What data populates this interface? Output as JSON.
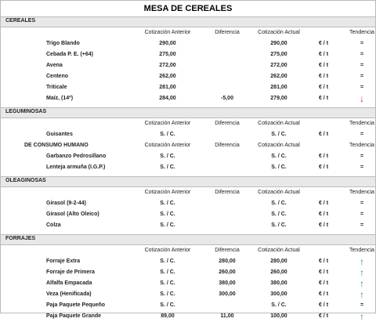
{
  "title": "MESA DE CEREALES",
  "sections": [
    {
      "name": "CEREALES",
      "groups": [
        {
          "columns": [
            "Cotización Anterior",
            "Diferencia",
            "Cotización Actual",
            "Tendencia"
          ],
          "rows": [
            [
              "Trigo Blando",
              "290,00",
              null,
              "290,00",
              "€ / t",
              "="
            ],
            [
              "Cebada P. E. (+64)",
              "275,00",
              null,
              "275,00",
              "€ / t",
              "="
            ],
            [
              "Avena",
              "272,00",
              null,
              "272,00",
              "€ / t",
              "="
            ],
            [
              "Centeno",
              "262,00",
              null,
              "262,00",
              "€ / t",
              "="
            ],
            [
              "Triticale",
              "281,00",
              null,
              "281,00",
              "€ / t",
              "="
            ],
            [
              "Maíz, (14º)",
              "284,00",
              "-5,00",
              "279,00",
              "€ / t",
              "↓"
            ]
          ]
        }
      ]
    },
    {
      "name": "LEGUMINOSAS",
      "groups": [
        {
          "columns": [
            "Cotización Anterior",
            "Diferencia",
            "Cotización Actual",
            "Tendencia"
          ],
          "rows": [
            [
              "Guisantes",
              "S. / C.",
              null,
              "S. / C.",
              "€ / t",
              "="
            ]
          ]
        },
        {
          "label": "DE CONSUMO HUMANO",
          "columns": [
            "Cotización Anterior",
            "Diferencia",
            "Cotización Actual",
            "Tendencia"
          ],
          "rows": [
            [
              "Garbanzo Pedrosillano",
              "S. / C.",
              null,
              "S. / C.",
              "€ / t",
              "="
            ],
            [
              "Lenteja armuña (I.G.P.)",
              "S. / C.",
              null,
              "S. / C.",
              "€ / t",
              "="
            ]
          ]
        }
      ]
    },
    {
      "name": "OLEAGINOSAS",
      "groups": [
        {
          "columns": [
            "Cotización Anterior",
            "Diferencia",
            "Cotización Actual",
            "Tendencia"
          ],
          "rows": [
            [
              "Girasol (9-2-44)",
              "S. / C.",
              null,
              "S. / C.",
              "€ / t",
              "="
            ],
            [
              "Girasol (Alto Oleico)",
              "S. / C.",
              null,
              "S. / C.",
              "€ / t",
              "="
            ],
            [
              "Colza",
              "S. / C.",
              null,
              "S. / C.",
              "€ / t",
              "="
            ]
          ]
        }
      ]
    },
    {
      "name": "FORRAJES",
      "groups": [
        {
          "columns": [
            "Cotización Anterior",
            "Diferencia",
            "Cotización Actual",
            "Tendencia"
          ],
          "rows": [
            [
              "Forraje Extra",
              "S. / C.",
              "280,00",
              "280,00",
              "€ / t",
              "↑"
            ],
            [
              "Forraje de Primera",
              "S. / C.",
              "260,00",
              "260,00",
              "€ / t",
              "↑"
            ],
            [
              "Alfalfa Empacada",
              "S. / C.",
              "380,00",
              "380,00",
              "€ / t",
              "↑"
            ],
            [
              "Veza (Henificada)",
              "S. / C.",
              "300,00",
              "300,00",
              "€ / t",
              "↑"
            ],
            [
              "Paja Paquete Pequeño",
              "S. / C.",
              null,
              "S. / C.",
              "€ / t",
              "="
            ],
            [
              "Paja Paquete Grande",
              "89,00",
              "11,00",
              "100,00",
              "€ / t",
              "↑"
            ]
          ]
        }
      ]
    }
  ]
}
